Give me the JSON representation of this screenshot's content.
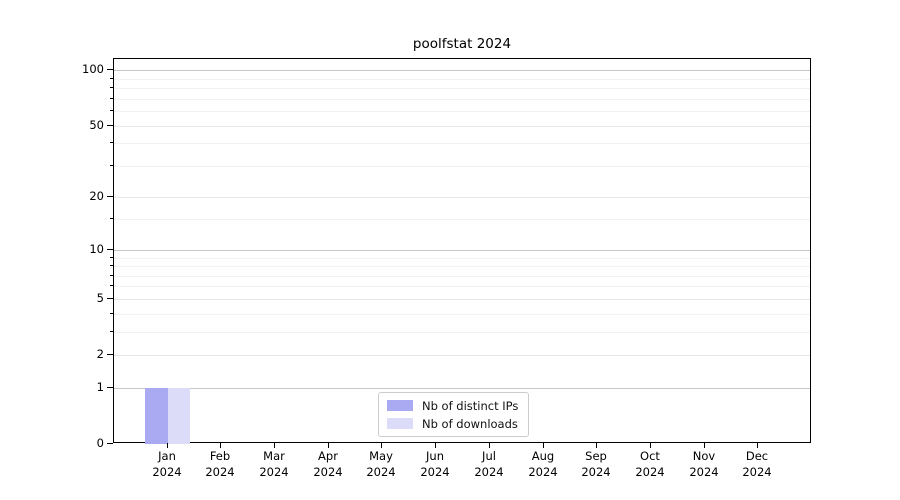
{
  "chart_data": {
    "type": "bar",
    "title": "poolfstat 2024",
    "categories": [
      "Jan",
      "Feb",
      "Mar",
      "Apr",
      "May",
      "Jun",
      "Jul",
      "Aug",
      "Sep",
      "Oct",
      "Nov",
      "Dec"
    ],
    "category_year": "2024",
    "series": [
      {
        "name": "Nb of distinct IPs",
        "color": "#aaaaf2",
        "values": [
          1,
          0,
          0,
          0,
          0,
          0,
          0,
          0,
          0,
          0,
          0,
          0
        ]
      },
      {
        "name": "Nb of downloads",
        "color": "#dcdcf8",
        "values": [
          1,
          0,
          0,
          0,
          0,
          0,
          0,
          0,
          0,
          0,
          0,
          0
        ]
      }
    ],
    "xlabel": "",
    "ylabel": "",
    "scale": "log1p",
    "ylim": [
      0,
      115
    ],
    "yticks_major": [
      0,
      1,
      2,
      5,
      10,
      20,
      50,
      100
    ],
    "yticks_minor": [
      3,
      4,
      6,
      7,
      8,
      9,
      15,
      30,
      40,
      60,
      70,
      80,
      90
    ],
    "decade_gridlines": [
      1,
      10,
      100
    ],
    "grid": "horizontal",
    "legend_position": "bottom-center-inside",
    "colors": {
      "grid_decade": "#c6c6c6",
      "grid_major": "#e7e7e7",
      "grid_minor": "#f2f2f2",
      "axis": "#000000",
      "background": "#ffffff"
    }
  }
}
